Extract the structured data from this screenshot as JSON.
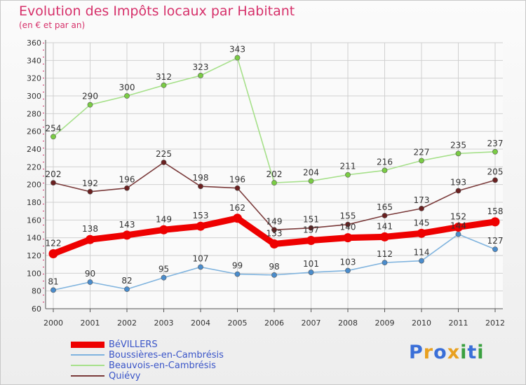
{
  "header": {
    "title": "Evolution des Impôts locaux par Habitant",
    "subtitle": "(en € et par an)"
  },
  "brand": {
    "p": "P",
    "r": "r",
    "o": "o",
    "x": "x",
    "i1": "i",
    "t": "t",
    "i2": "i"
  },
  "colors": {
    "accent": "#d6306a",
    "grid": "#d0d0d0",
    "axis": "#555555",
    "label": "#333333",
    "brand": [
      "#3a6fd8",
      "#e8a020",
      "#3a6fd8",
      "#e8a020",
      "#3aa040",
      "#3a6fd8",
      "#3aa040"
    ]
  },
  "chart_data": {
    "type": "line",
    "title": "Evolution des Impôts locaux par Habitant",
    "subtitle": "(en € et par an)",
    "xlabel": "",
    "ylabel": "",
    "ylim": [
      60,
      360
    ],
    "ytick_step": 20,
    "grid": true,
    "x": [
      "2000",
      "2001",
      "2002",
      "2003",
      "2004",
      "2005",
      "2006",
      "2007",
      "2008",
      "2009",
      "2010",
      "2011",
      "2012"
    ],
    "series": [
      {
        "name": "BéVILLERS",
        "color": "#ee0000",
        "line_color": "#ee0000",
        "marker_color": "#ee0000",
        "emphasis": true,
        "values": [
          122,
          138,
          143,
          149,
          153,
          162,
          133,
          137,
          140,
          141,
          145,
          152,
          158
        ],
        "labels": [
          "122",
          "138",
          "143",
          "149",
          "153",
          "162",
          "133",
          "137",
          "140",
          "141",
          "145",
          "152",
          "158"
        ],
        "label_pos": [
          "above",
          "above",
          "above",
          "above",
          "above",
          "above",
          "above",
          "above",
          "above",
          "above",
          "above",
          "above",
          "above"
        ]
      },
      {
        "name": "Boussières-en-Cambrésis",
        "color": "#5f9fd3",
        "line_color": "#7fb3de",
        "marker_color": "#4a8ccc",
        "emphasis": false,
        "values": [
          81,
          90,
          82,
          95,
          107,
          99,
          98,
          101,
          103,
          112,
          114,
          144,
          127
        ],
        "labels": [
          "81",
          "90",
          "82",
          "95",
          "107",
          "99",
          "98",
          "101",
          "103",
          "112",
          "114",
          "144",
          "127"
        ],
        "label_pos": [
          "above",
          "above",
          "above",
          "above",
          "above",
          "above",
          "above",
          "above",
          "above",
          "above",
          "above",
          "above",
          "above"
        ]
      },
      {
        "name": "Beauvois-en-Cambrésis",
        "color": "#90d870",
        "line_color": "#a6e08a",
        "marker_color": "#7acc44",
        "emphasis": false,
        "values": [
          254,
          290,
          300,
          312,
          323,
          343,
          202,
          204,
          211,
          216,
          227,
          235,
          237
        ],
        "labels": [
          "254",
          "290",
          "300",
          "312",
          "323",
          "343",
          "202",
          "204",
          "211",
          "216",
          "227",
          "235",
          "237"
        ],
        "label_pos": [
          "above",
          "above",
          "above",
          "above",
          "above",
          "above",
          "above",
          "above",
          "above",
          "above",
          "above",
          "above",
          "above"
        ]
      },
      {
        "name": "Quiévy",
        "color": "#7a2a2a",
        "line_color": "#7a3a3a",
        "marker_color": "#6a2020",
        "emphasis": false,
        "values": [
          202,
          192,
          196,
          225,
          198,
          196,
          149,
          151,
          155,
          165,
          173,
          193,
          205
        ],
        "labels": [
          "202",
          "192",
          "196",
          "225",
          "198",
          "196",
          "149",
          "151",
          "155",
          "165",
          "173",
          "193",
          "205"
        ],
        "label_pos": [
          "above",
          "above",
          "above",
          "above",
          "above",
          "above",
          "above",
          "above",
          "above",
          "above",
          "above",
          "above",
          "above"
        ]
      }
    ]
  }
}
